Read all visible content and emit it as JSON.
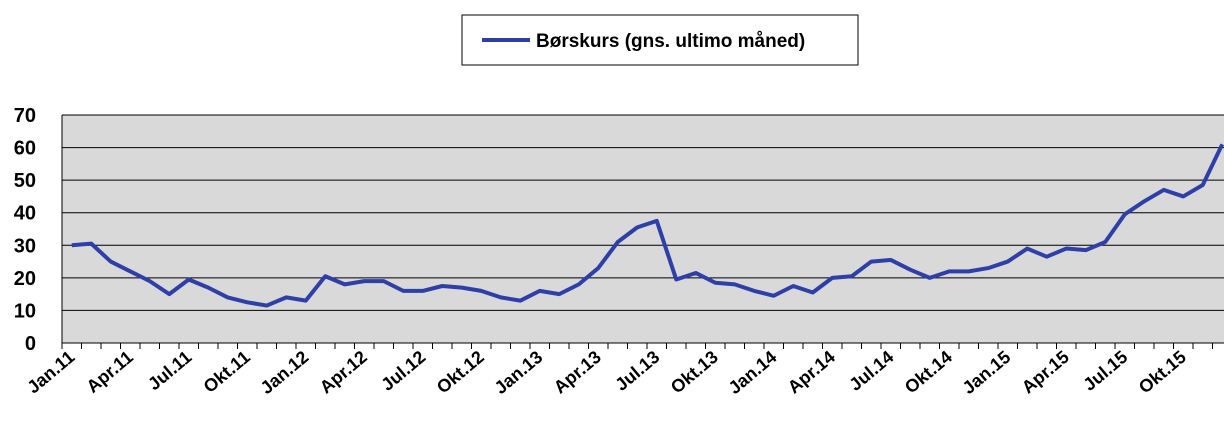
{
  "chart_data": {
    "type": "line",
    "categories": [
      "Jan.11",
      null,
      null,
      "Apr.11",
      null,
      null,
      "Jul.11",
      null,
      null,
      "Okt.11",
      null,
      null,
      "Jan.12",
      null,
      null,
      "Apr.12",
      null,
      null,
      "Jul.12",
      null,
      null,
      "Okt.12",
      null,
      null,
      "Jan.13",
      null,
      null,
      "Apr.13",
      null,
      null,
      "Jul.13",
      null,
      null,
      "Okt.13",
      null,
      null,
      "Jan.14",
      null,
      null,
      "Apr.14",
      null,
      null,
      "Jul.14",
      null,
      null,
      "Okt.14",
      null,
      null,
      "Jan.15",
      null,
      null,
      "Apr.15",
      null,
      null,
      "Jul.15",
      null,
      null,
      "Okt.15",
      null,
      null
    ],
    "series": [
      {
        "name": "Børskurs (gns. ultimo måned)",
        "color": "#2e3fa8",
        "values": [
          30,
          30.5,
          25,
          22,
          19,
          15,
          19.5,
          17,
          14,
          12.5,
          11.5,
          14,
          13,
          20.5,
          18,
          19,
          19,
          16,
          16,
          17.5,
          17,
          16,
          14,
          13,
          16,
          15,
          18,
          23,
          31,
          35.5,
          37.5,
          19.5,
          21.5,
          18.5,
          18,
          16,
          14.5,
          17.5,
          15.5,
          20,
          20.5,
          25,
          25.5,
          22.5,
          20,
          22,
          22,
          23,
          25,
          29,
          26.5,
          29,
          28.5,
          31,
          39.5,
          43.5,
          47,
          45,
          48.5,
          61
        ]
      }
    ],
    "ylim": [
      0,
      70
    ],
    "yticks": [
      0,
      10,
      20,
      30,
      40,
      50,
      60,
      70
    ],
    "grid": true,
    "legend": "top"
  }
}
